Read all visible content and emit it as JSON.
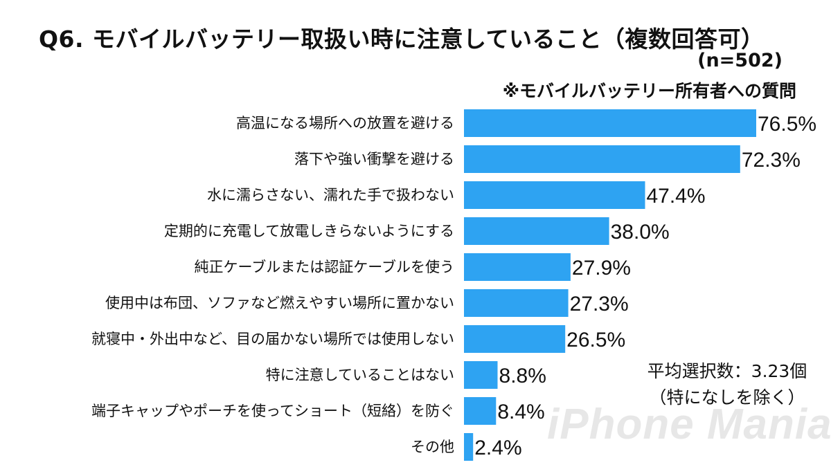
{
  "header": {
    "title": "Q6. モバイルバッテリー取扱い時に注意していること（複数回答可）",
    "sample": "(n=502)",
    "note": "※モバイルバッテリー所有者への質問"
  },
  "annotation": {
    "line1": "平均選択数：3.23個",
    "line2": "（特になしを除く）"
  },
  "watermark": "iPhone Mania",
  "colors": {
    "bar": "#2ea3f2"
  },
  "chart_data": {
    "type": "bar",
    "orientation": "horizontal",
    "title": "Q6. モバイルバッテリー取扱い時に注意していること（複数回答可）",
    "categories": [
      "高温になる場所への放置を避ける",
      "落下や強い衝撃を避ける",
      "水に濡らさない、濡れた手で扱わない",
      "定期的に充電して放電しきらないようにする",
      "純正ケーブルまたは認証ケーブルを使う",
      "使用中は布団、ソファなど燃えやすい場所に置かない",
      "就寝中・外出中など、目の届かない場所では使用しない",
      "特に注意していることはない",
      "端子キャップやポーチを使ってショート（短絡）を防ぐ",
      "その他"
    ],
    "values": [
      76.5,
      72.3,
      47.4,
      38.0,
      27.9,
      27.3,
      26.5,
      8.8,
      8.4,
      2.4
    ],
    "value_labels": [
      "76.5%",
      "72.3%",
      "47.4%",
      "38.0%",
      "27.9%",
      "27.3%",
      "26.5%",
      "8.8%",
      "8.4%",
      "2.4%"
    ],
    "unit": "%",
    "xlim": [
      0,
      80
    ],
    "grid": false,
    "legend": "none"
  }
}
